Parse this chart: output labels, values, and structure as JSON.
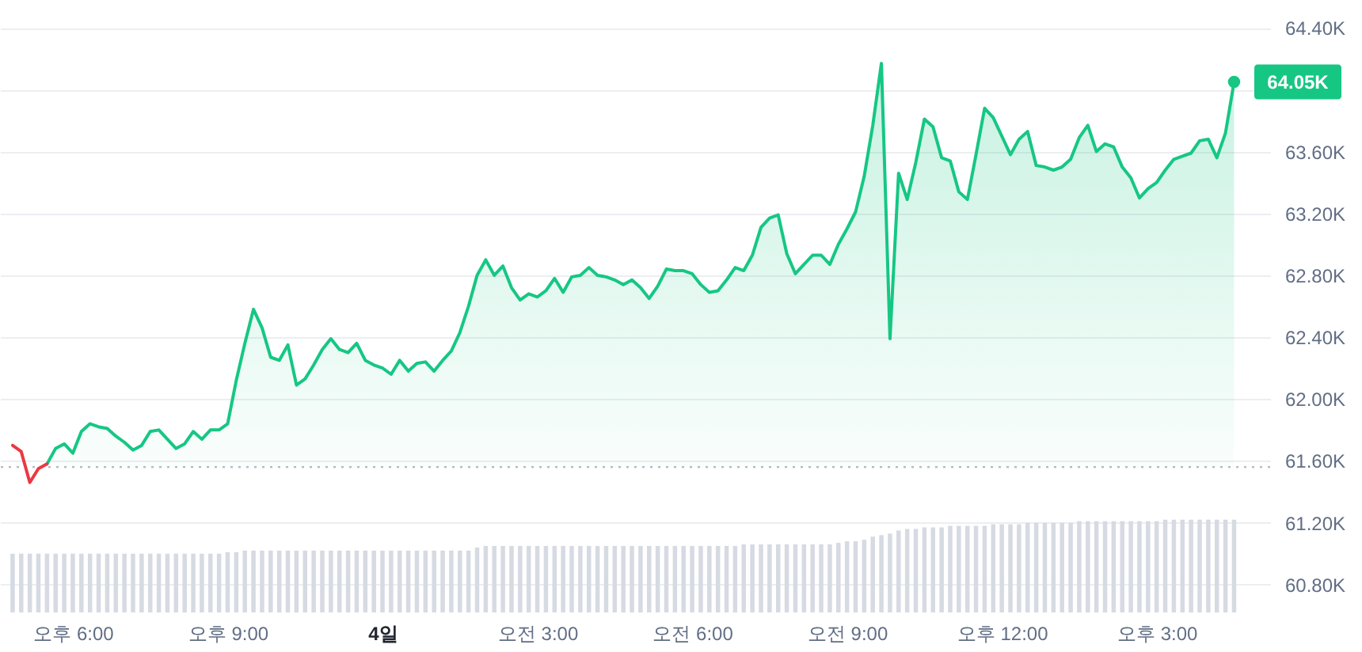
{
  "chart_data": {
    "type": "area",
    "ylim": [
      60.62,
      64.58
    ],
    "categories": [
      null,
      null,
      null,
      null,
      null,
      null,
      null,
      "오후 6:00",
      null,
      null,
      null,
      null,
      null,
      null,
      null,
      null,
      null,
      null,
      null,
      null,
      null,
      null,
      null,
      null,
      null,
      "오후 9:00",
      null,
      null,
      null,
      null,
      null,
      null,
      null,
      null,
      null,
      null,
      null,
      null,
      null,
      null,
      null,
      null,
      null,
      "4일",
      null,
      null,
      null,
      null,
      null,
      null,
      null,
      null,
      null,
      null,
      null,
      null,
      null,
      null,
      null,
      null,
      null,
      "오전 3:00",
      null,
      null,
      null,
      null,
      null,
      null,
      null,
      null,
      null,
      null,
      null,
      null,
      null,
      null,
      null,
      null,
      null,
      "오전 6:00",
      null,
      null,
      null,
      null,
      null,
      null,
      null,
      null,
      null,
      null,
      null,
      null,
      null,
      null,
      null,
      null,
      null,
      "오전 9:00",
      null,
      null,
      null,
      null,
      null,
      null,
      null,
      null,
      null,
      null,
      null,
      null,
      null,
      null,
      null,
      null,
      null,
      "오후 12:00",
      null,
      null,
      null,
      null,
      null,
      null,
      null,
      null,
      null,
      null,
      null,
      null,
      null,
      null,
      null,
      null,
      null,
      "오후 3:00",
      null,
      null,
      null,
      null,
      null,
      null,
      null,
      null,
      null
    ],
    "yticks": [
      {
        "value": 64.4,
        "label": "64.40K"
      },
      {
        "value": 64.0,
        "label": null
      },
      {
        "value": 63.6,
        "label": "63.60K"
      },
      {
        "value": 63.2,
        "label": "63.20K"
      },
      {
        "value": 62.8,
        "label": "62.80K"
      },
      {
        "value": 62.4,
        "label": "62.40K"
      },
      {
        "value": 62.0,
        "label": "62.00K"
      },
      {
        "value": 61.6,
        "label": "61.60K"
      },
      {
        "value": 61.2,
        "label": "61.20K"
      },
      {
        "value": 60.8,
        "label": "60.80K"
      }
    ],
    "grid": "y",
    "ref_lines": [
      {
        "axis": "y",
        "value": 61.56,
        "line_style": "dotted",
        "color": "#b8bdc6"
      }
    ],
    "series": [
      {
        "type": "bar",
        "color": "#d6dae2",
        "values": [
          61.0,
          61.0,
          61.0,
          61.0,
          61.0,
          61.0,
          61.0,
          61.0,
          61.0,
          61.0,
          61.0,
          61.0,
          61.0,
          61.0,
          61.0,
          61.0,
          61.0,
          61.0,
          61.0,
          61.0,
          61.0,
          61.0,
          61.0,
          61.0,
          61.0,
          61.01,
          61.01,
          61.02,
          61.02,
          61.02,
          61.02,
          61.02,
          61.02,
          61.02,
          61.02,
          61.02,
          61.02,
          61.02,
          61.02,
          61.02,
          61.02,
          61.02,
          61.02,
          61.02,
          61.02,
          61.02,
          61.02,
          61.02,
          61.02,
          61.02,
          61.02,
          61.02,
          61.02,
          61.02,
          61.04,
          61.05,
          61.05,
          61.05,
          61.05,
          61.05,
          61.05,
          61.05,
          61.05,
          61.05,
          61.05,
          61.05,
          61.05,
          61.05,
          61.05,
          61.05,
          61.05,
          61.05,
          61.05,
          61.05,
          61.05,
          61.05,
          61.05,
          61.05,
          61.05,
          61.05,
          61.05,
          61.05,
          61.05,
          61.05,
          61.05,
          61.06,
          61.06,
          61.06,
          61.06,
          61.06,
          61.06,
          61.06,
          61.06,
          61.06,
          61.06,
          61.06,
          61.07,
          61.08,
          61.08,
          61.09,
          61.11,
          61.12,
          61.13,
          61.15,
          61.16,
          61.16,
          61.17,
          61.17,
          61.17,
          61.18,
          61.18,
          61.18,
          61.18,
          61.18,
          61.19,
          61.19,
          61.19,
          61.19,
          61.2,
          61.2,
          61.2,
          61.2,
          61.2,
          61.2,
          61.21,
          61.21,
          61.21,
          61.21,
          61.21,
          61.21,
          61.21,
          61.21,
          61.21,
          61.21,
          61.22,
          61.22,
          61.22,
          61.22,
          61.22,
          61.22,
          61.22,
          61.22,
          61.22
        ]
      },
      {
        "color": "#16c784",
        "values": [
          null,
          null,
          null,
          null,
          61.58,
          61.68,
          61.71,
          61.65,
          61.79,
          61.84,
          61.82,
          61.81,
          61.76,
          61.72,
          61.67,
          61.7,
          61.79,
          61.8,
          61.74,
          61.68,
          61.71,
          61.79,
          61.74,
          61.8,
          61.8,
          61.84,
          62.12,
          62.36,
          62.58,
          62.46,
          62.27,
          62.25,
          62.35,
          62.09,
          62.13,
          62.22,
          62.32,
          62.39,
          62.32,
          62.3,
          62.36,
          62.25,
          62.22,
          62.2,
          62.16,
          62.25,
          62.18,
          62.23,
          62.24,
          62.18,
          62.25,
          62.31,
          62.43,
          62.6,
          62.8,
          62.9,
          62.8,
          62.86,
          62.72,
          62.64,
          62.68,
          62.66,
          62.7,
          62.78,
          62.69,
          62.79,
          62.8,
          62.85,
          62.8,
          62.79,
          62.77,
          62.74,
          62.77,
          62.72,
          62.65,
          62.73,
          62.84,
          62.83,
          62.83,
          62.81,
          62.74,
          62.69,
          62.7,
          62.77,
          62.85,
          62.83,
          62.93,
          63.11,
          63.17,
          63.19,
          62.94,
          62.81,
          62.87,
          62.93,
          62.93,
          62.87,
          63.0,
          63.1,
          63.21,
          63.44,
          63.77,
          64.17,
          62.39,
          63.46,
          63.29,
          63.53,
          63.81,
          63.76,
          63.56,
          63.54,
          63.34,
          63.29,
          63.58,
          63.88,
          63.82,
          63.7,
          63.58,
          63.68,
          63.73,
          63.51,
          63.5,
          63.48,
          63.5,
          63.55,
          63.69,
          63.77,
          63.6,
          63.65,
          63.63,
          63.5,
          63.43,
          63.3,
          63.36,
          63.4,
          63.48,
          63.55,
          63.57,
          63.59,
          63.67,
          63.68,
          63.56,
          63.72,
          64.05
        ]
      },
      {
        "type": "line",
        "color": "#ea3943",
        "values": [
          61.7,
          61.66,
          61.46,
          61.55,
          61.58,
          null,
          null,
          null,
          null,
          null,
          null,
          null,
          null,
          null,
          null,
          null,
          null,
          null,
          null,
          null,
          null,
          null,
          null,
          null,
          null,
          null,
          null,
          null,
          null,
          null,
          null,
          null,
          null,
          null,
          null,
          null,
          null,
          null,
          null,
          null,
          null,
          null,
          null,
          null,
          null,
          null,
          null,
          null,
          null,
          null,
          null,
          null,
          null,
          null,
          null,
          null,
          null,
          null,
          null,
          null,
          null,
          null,
          null,
          null,
          null,
          null,
          null,
          null,
          null,
          null,
          null,
          null,
          null,
          null,
          null,
          null,
          null,
          null,
          null,
          null,
          null,
          null,
          null,
          null,
          null,
          null,
          null,
          null,
          null,
          null,
          null,
          null,
          null,
          null,
          null,
          null,
          null,
          null,
          null,
          null,
          null,
          null,
          null,
          null,
          null,
          null,
          null,
          null,
          null,
          null,
          null,
          null,
          null,
          null,
          null,
          null,
          null,
          null,
          null,
          null,
          null,
          null,
          null,
          null,
          null,
          null,
          null,
          null,
          null,
          null,
          null,
          null,
          null,
          null,
          null,
          null,
          null,
          null,
          null,
          null,
          null,
          null,
          null
        ]
      },
      {
        "type": "scatter",
        "color": "#16c784",
        "values": [
          null,
          null,
          null,
          null,
          null,
          null,
          null,
          null,
          null,
          null,
          null,
          null,
          null,
          null,
          null,
          null,
          null,
          null,
          null,
          null,
          null,
          null,
          null,
          null,
          null,
          null,
          null,
          null,
          null,
          null,
          null,
          null,
          null,
          null,
          null,
          null,
          null,
          null,
          null,
          null,
          null,
          null,
          null,
          null,
          null,
          null,
          null,
          null,
          null,
          null,
          null,
          null,
          null,
          null,
          null,
          null,
          null,
          null,
          null,
          null,
          null,
          null,
          null,
          null,
          null,
          null,
          null,
          null,
          null,
          null,
          null,
          null,
          null,
          null,
          null,
          null,
          null,
          null,
          null,
          null,
          null,
          null,
          null,
          null,
          null,
          null,
          null,
          null,
          null,
          null,
          null,
          null,
          null,
          null,
          null,
          null,
          null,
          null,
          null,
          null,
          null,
          null,
          null,
          null,
          null,
          null,
          null,
          null,
          null,
          null,
          null,
          null,
          null,
          null,
          null,
          null,
          null,
          null,
          null,
          null,
          null,
          null,
          null,
          null,
          null,
          null,
          null,
          null,
          null,
          null,
          null,
          null,
          null,
          null,
          null,
          null,
          null,
          null,
          null,
          null,
          null,
          null,
          64.05
        ],
        "value_labels": [
          null,
          null,
          null,
          null,
          null,
          null,
          null,
          null,
          null,
          null,
          null,
          null,
          null,
          null,
          null,
          null,
          null,
          null,
          null,
          null,
          null,
          null,
          null,
          null,
          null,
          null,
          null,
          null,
          null,
          null,
          null,
          null,
          null,
          null,
          null,
          null,
          null,
          null,
          null,
          null,
          null,
          null,
          null,
          null,
          null,
          null,
          null,
          null,
          null,
          null,
          null,
          null,
          null,
          null,
          null,
          null,
          null,
          null,
          null,
          null,
          null,
          null,
          null,
          null,
          null,
          null,
          null,
          null,
          null,
          null,
          null,
          null,
          null,
          null,
          null,
          null,
          null,
          null,
          null,
          null,
          null,
          null,
          null,
          null,
          null,
          null,
          null,
          null,
          null,
          null,
          null,
          null,
          null,
          null,
          null,
          null,
          null,
          null,
          null,
          null,
          null,
          null,
          null,
          null,
          null,
          null,
          null,
          null,
          null,
          null,
          null,
          null,
          null,
          null,
          null,
          null,
          null,
          null,
          null,
          null,
          null,
          null,
          null,
          null,
          null,
          null,
          null,
          null,
          null,
          null,
          null,
          null,
          null,
          null,
          null,
          null,
          null,
          null,
          null,
          null,
          null,
          null,
          "64.05K"
        ]
      }
    ]
  }
}
